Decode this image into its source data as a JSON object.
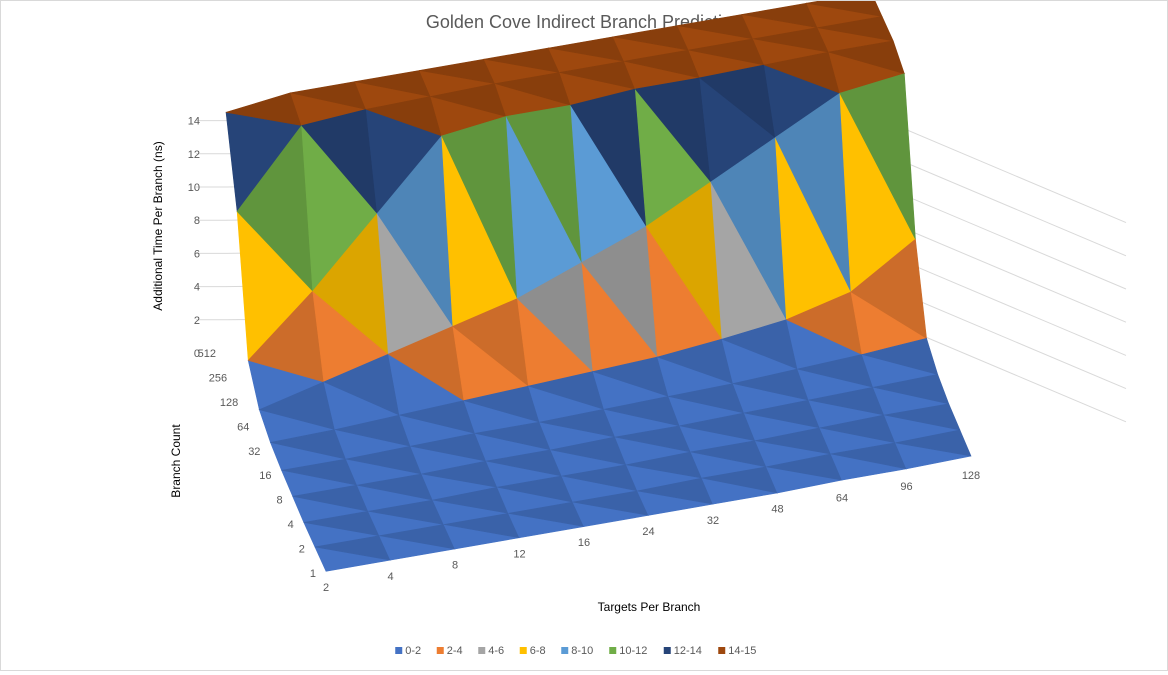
{
  "chart_data": {
    "type": "surface",
    "title": "Golden Cove Indirect Branch Prediction",
    "xlabel": "Targets Per Branch",
    "ylabel": "Branch Count",
    "zlabel": "Additional Time Per Branch (ns)",
    "x_ticks": [
      "2",
      "4",
      "8",
      "12",
      "16",
      "24",
      "32",
      "48",
      "64",
      "96",
      "128"
    ],
    "y_ticks": [
      "1",
      "2",
      "4",
      "8",
      "16",
      "32",
      "64",
      "128",
      "256",
      "512"
    ],
    "z_ticks": [
      "0",
      "2",
      "4",
      "6",
      "8",
      "10",
      "12",
      "14"
    ],
    "zlim": [
      0,
      15
    ],
    "grid": true,
    "legend_position": "bottom",
    "bands": [
      {
        "name": "0-2",
        "color": "#4472c4"
      },
      {
        "name": "2-4",
        "color": "#ed7d31"
      },
      {
        "name": "4-6",
        "color": "#a5a5a5"
      },
      {
        "name": "6-8",
        "color": "#ffc000"
      },
      {
        "name": "8-10",
        "color": "#5b9bd5"
      },
      {
        "name": "10-12",
        "color": "#70ad47"
      },
      {
        "name": "12-14",
        "color": "#264478"
      },
      {
        "name": "14-15",
        "color": "#9e480e"
      }
    ],
    "values": [
      [
        0.1,
        0.1,
        0.1,
        0.1,
        0.1,
        0.1,
        0.1,
        0.1,
        0.2,
        0.2,
        0.3
      ],
      [
        0.1,
        0.1,
        0.1,
        0.1,
        0.1,
        0.1,
        0.2,
        0.2,
        0.3,
        0.3,
        0.4
      ],
      [
        0.1,
        0.1,
        0.1,
        0.2,
        0.2,
        0.2,
        0.3,
        0.3,
        0.4,
        0.5,
        0.5
      ],
      [
        0.2,
        0.2,
        0.2,
        0.3,
        0.3,
        0.4,
        0.4,
        0.5,
        0.6,
        0.7,
        0.8
      ],
      [
        0.3,
        0.3,
        0.4,
        0.5,
        0.5,
        0.6,
        0.7,
        0.8,
        1.0,
        1.2,
        1.5
      ],
      [
        0.5,
        0.6,
        0.8,
        1.0,
        1.2,
        1.4,
        1.6,
        2.0,
        2.5,
        3.5,
        6.0
      ],
      [
        1.0,
        2.0,
        3.0,
        4.0,
        5.0,
        6.5,
        8.0,
        10.0,
        12.0,
        14.0,
        14.5
      ],
      [
        2.5,
        6.0,
        10.0,
        14.0,
        14.5,
        14.5,
        14.8,
        14.8,
        14.9,
        15.0,
        15.0
      ],
      [
        10.0,
        14.5,
        14.8,
        14.9,
        15.0,
        15.0,
        15.0,
        15.0,
        15.0,
        15.0,
        15.0
      ],
      [
        14.5,
        15.0,
        15.0,
        15.0,
        15.0,
        15.0,
        15.0,
        15.0,
        15.0,
        15.0,
        15.0
      ]
    ]
  }
}
